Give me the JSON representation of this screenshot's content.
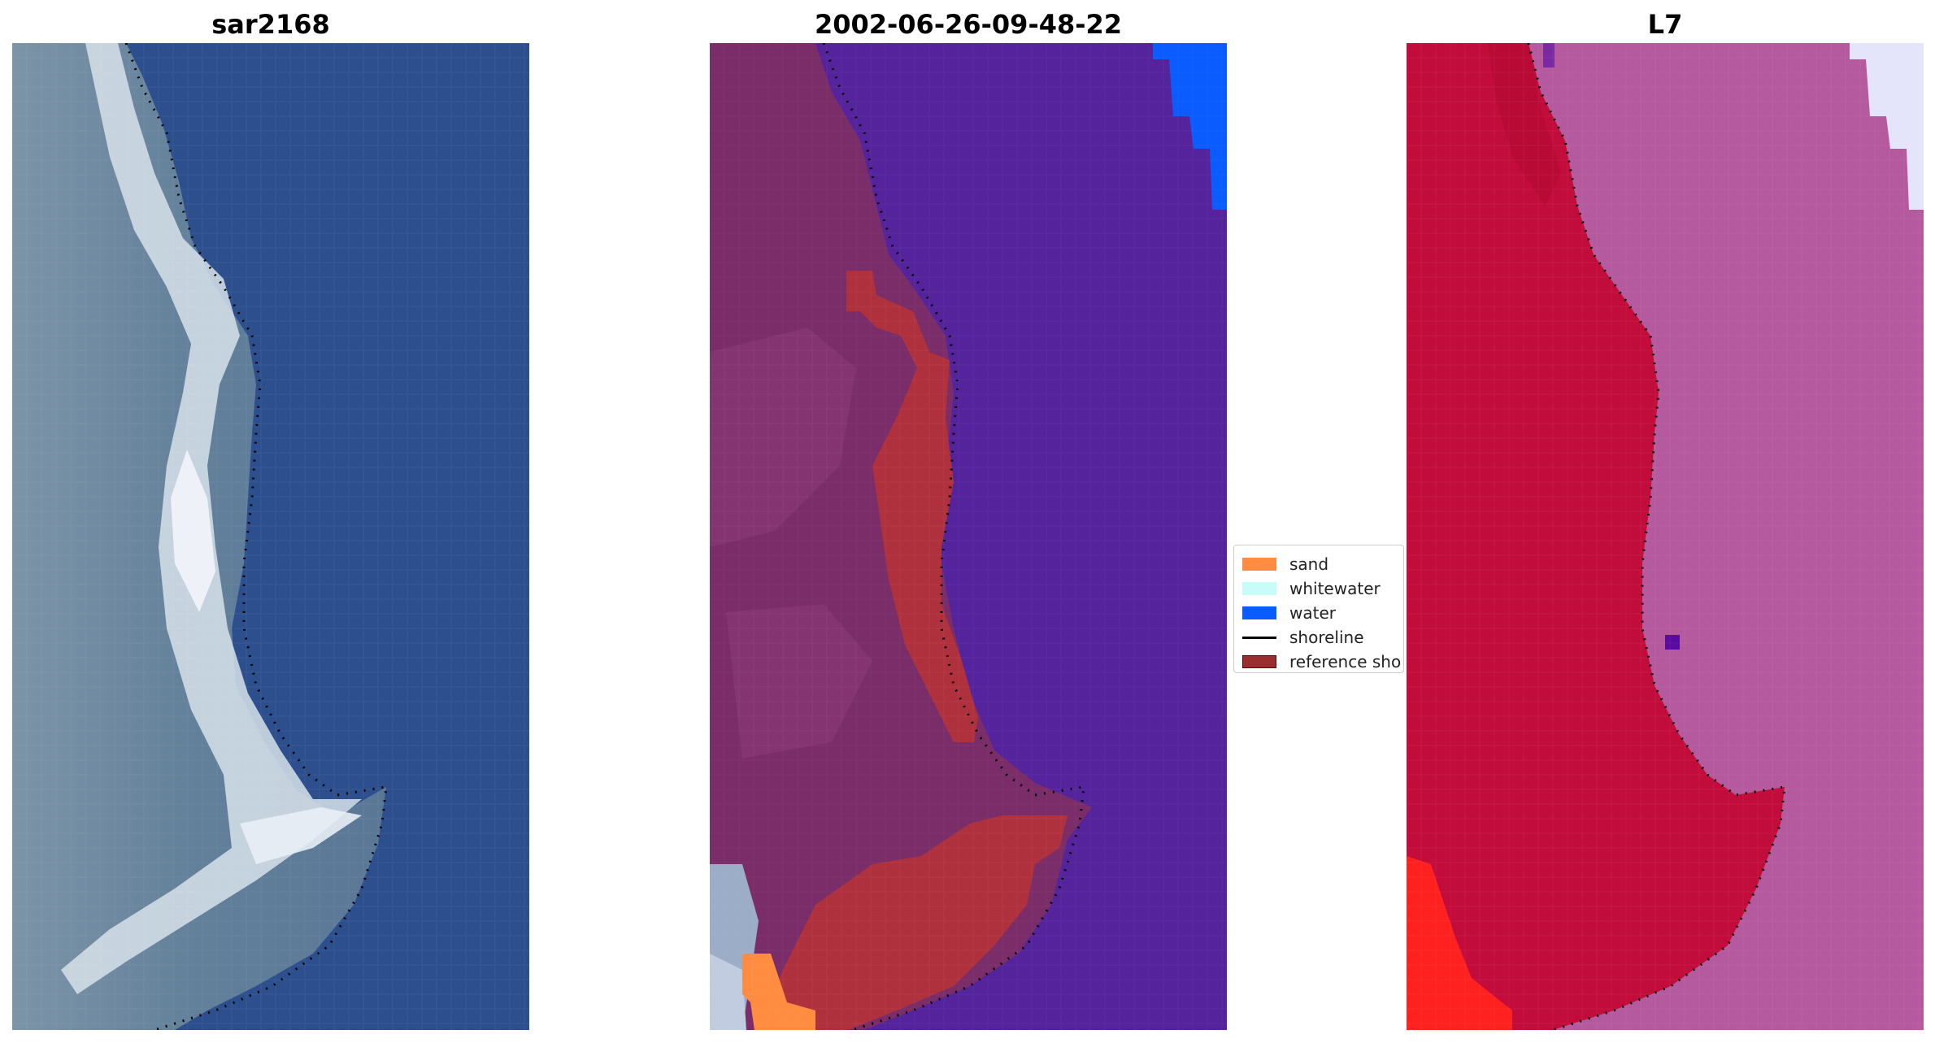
{
  "panels": [
    {
      "title": "sar2168",
      "image": "RGB satellite image with detected shoreline"
    },
    {
      "title": "2002-06-26-09-48-22",
      "image": "classified image with reference shoreline buffer"
    },
    {
      "title": "L7",
      "image": "false-colour image with detected shoreline"
    }
  ],
  "legend": {
    "items": [
      {
        "label": "sand",
        "color": "#ff8c40",
        "kind": "patch"
      },
      {
        "label": "whitewater",
        "color": "#c8fcf9",
        "kind": "patch"
      },
      {
        "label": "water",
        "color": "#0a5cff",
        "kind": "patch"
      },
      {
        "label": "shoreline",
        "color": "#000000",
        "kind": "line"
      },
      {
        "label": "reference sho",
        "color": "#9b2d30",
        "kind": "patch"
      }
    ]
  },
  "colors": {
    "rgb_sea": "#2d4f8e",
    "rgb_land": "#6e8aa0",
    "class_water": "#55249c",
    "class_land": "#7a2d68",
    "class_reference": "#b0313e",
    "class_sand": "#ff8c40",
    "class_whitewater": "#b8c6dc",
    "class_water_bright": "#0a5cff",
    "fc_land": "#c20c3c",
    "fc_sea": "#b55a9e",
    "fc_bright": "#e4e4fb",
    "fc_red": "#ff2020"
  }
}
